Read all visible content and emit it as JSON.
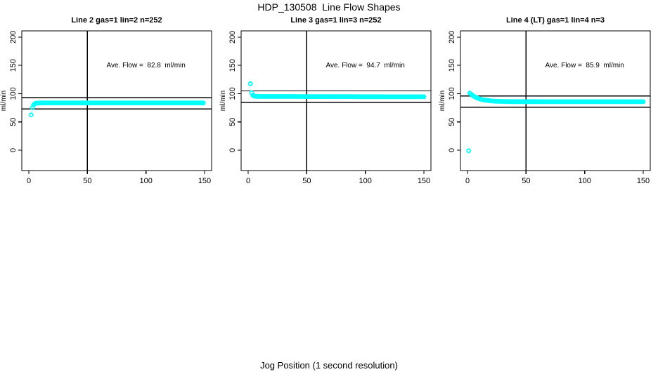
{
  "figure": {
    "title": "HDP_130508  Line Flow Shapes",
    "xlabel": "Jog Position (1 second resolution)",
    "background_color": "#ffffff",
    "axis_color": "#000000",
    "marker_color": "#00FFFF"
  },
  "chart_data": [
    {
      "type": "scatter",
      "title": "Line 2 gas=1 lin=2 n=252",
      "annotation": "Ave. Flow =  82.8  ml/min",
      "ave_flow_ml_min": 82.8,
      "n": 252,
      "ylabel": "ml/min",
      "x_ticks": [
        0,
        50,
        100,
        150
      ],
      "y_ticks": [
        0,
        50,
        100,
        150,
        200
      ],
      "xlim": [
        -6,
        156
      ],
      "ylim": [
        -36,
        211
      ],
      "vline_x": 50,
      "hlines": [
        92.8,
        72.8
      ],
      "annotation_xy": [
        100,
        150
      ],
      "series": {
        "x_start": 2,
        "x_step": 1,
        "y": [
          62.5,
          75,
          80.1,
          82.1,
          82.9,
          83.2,
          83.4,
          83.5,
          83.5,
          83.5,
          83.5,
          83.5,
          83.5,
          83.5,
          83.5,
          83.5,
          83.5,
          83.5,
          83.5,
          83.5,
          83.5,
          83.5,
          83.5,
          83.5,
          83.5,
          83.5,
          83.5,
          83.5,
          83.5,
          83.5,
          83.5,
          83.5,
          83.5,
          83.5,
          83.5,
          83.5,
          83.5,
          83.5,
          83.5,
          83.5,
          83.5,
          83.5,
          83.5,
          83.5,
          83.5,
          83.5,
          83.5,
          83.5,
          83.5,
          83.5,
          83.5,
          83.5,
          83.5,
          83.5,
          83.5,
          83.5,
          83.5,
          83.5,
          83.5,
          83.5,
          83.5,
          83.5,
          83.5,
          83.5,
          83.5,
          83.5,
          83.5,
          83.5,
          83.5,
          83.5,
          83.5,
          83.5,
          83.5,
          83.5,
          83.5,
          83.5,
          83.5,
          83.5,
          83.5,
          83.5,
          83.5,
          83.5,
          83.5,
          83.5,
          83.5,
          83.5,
          83.5,
          83.5,
          83.5,
          83.5,
          83.5,
          83.5,
          83.5,
          83.5,
          83.5,
          83.5,
          83.5,
          83.5,
          83.5,
          83.5,
          83.5,
          83.5,
          83.5,
          83.5,
          83.5,
          83.5,
          83.5,
          83.5,
          83.5,
          83.5,
          83.5,
          83.5,
          83.5,
          83.5,
          83.5,
          83.5,
          83.5,
          83.5,
          83.5,
          83.5,
          83.5,
          83.5,
          83.5,
          83.5,
          83.5,
          83.5,
          83.5,
          83.5,
          83.5,
          83.5,
          83.5,
          83.5,
          83.5,
          83.5,
          83.5,
          83.5,
          83.5,
          83.5,
          83.5,
          83.5,
          83.5,
          83.5,
          83.5,
          83.5,
          83.5,
          83.5,
          83.5,
          83.5
        ]
      }
    },
    {
      "type": "scatter",
      "title": "Line 3 gas=1 lin=3 n=252",
      "annotation": "Ave. Flow =  94.7  ml/min",
      "ave_flow_ml_min": 94.7,
      "n": 252,
      "ylabel": "ml/min",
      "x_ticks": [
        0,
        50,
        100,
        150
      ],
      "y_ticks": [
        0,
        50,
        100,
        150,
        200
      ],
      "xlim": [
        -6,
        156
      ],
      "ylim": [
        -36,
        211
      ],
      "vline_x": 50,
      "hlines": [
        104.7,
        84.7
      ],
      "annotation_xy": [
        100,
        150
      ],
      "series": {
        "x_start": 2,
        "x_step": 1,
        "y": [
          117.5,
          101.5,
          96.9,
          95.8,
          95.4,
          95.2,
          95.1,
          95,
          95,
          95,
          95,
          95,
          95,
          95,
          95,
          95,
          95,
          95,
          95,
          95,
          94.9,
          94.9,
          94.9,
          94.9,
          94.9,
          94.9,
          94.9,
          94.9,
          94.9,
          94.9,
          94.9,
          94.9,
          94.9,
          94.9,
          94.9,
          94.9,
          94.9,
          94.9,
          94.9,
          94.9,
          94.9,
          94.9,
          94.9,
          94.8,
          94.8,
          94.8,
          94.8,
          94.8,
          94.8,
          94.8,
          94.8,
          94.8,
          94.8,
          94.8,
          94.8,
          94.8,
          94.8,
          94.8,
          94.8,
          94.8,
          94.8,
          94.8,
          94.8,
          94.8,
          94.8,
          94.8,
          94.8,
          94.7,
          94.7,
          94.7,
          94.7,
          94.7,
          94.7,
          94.7,
          94.7,
          94.7,
          94.7,
          94.7,
          94.7,
          94.7,
          94.7,
          94.7,
          94.7,
          94.7,
          94.7,
          94.7,
          94.7,
          94.7,
          94.7,
          94.7,
          94.6,
          94.6,
          94.6,
          94.6,
          94.6,
          94.6,
          94.6,
          94.6,
          94.6,
          94.6,
          94.6,
          94.6,
          94.6,
          94.6,
          94.6,
          94.6,
          94.6,
          94.6,
          94.6,
          94.6,
          94.6,
          94.6,
          94.6,
          94.5,
          94.5,
          94.5,
          94.5,
          94.5,
          94.5,
          94.5,
          94.5,
          94.5,
          94.5,
          94.5,
          94.5,
          94.5,
          94.5,
          94.5,
          94.5,
          94.5,
          94.5,
          94.5,
          94.5,
          94.5,
          94.5,
          94.5,
          94.4,
          94.4,
          94.4,
          94.4,
          94.4,
          94.4,
          94.4,
          94.4,
          94.4,
          94.4,
          94.4,
          94.4,
          94.4
        ]
      }
    },
    {
      "type": "scatter",
      "title": "Line 4 (LT) gas=1 lin=4 n=3",
      "annotation": "Ave. Flow =  85.9  ml/min",
      "ave_flow_ml_min": 85.9,
      "n": 3,
      "ylabel": "ml/min",
      "x_ticks": [
        0,
        50,
        100,
        150
      ],
      "y_ticks": [
        0,
        50,
        100,
        150,
        200
      ],
      "xlim": [
        -6,
        156
      ],
      "ylim": [
        -36,
        211
      ],
      "vline_x": 50,
      "hlines": [
        95.9,
        75.9
      ],
      "annotation_xy": [
        100,
        150
      ],
      "series": {
        "x_start": 1,
        "x_step": 1,
        "y": [
          -1,
          101,
          99.1,
          97.4,
          96,
          94.7,
          93.6,
          92.6,
          91.8,
          91,
          90.4,
          89.8,
          89.3,
          88.9,
          88.5,
          88.2,
          87.9,
          87.6,
          87.4,
          87.2,
          87,
          86.9,
          86.8,
          86.6,
          86.5,
          86.4,
          86.4,
          86.3,
          86.2,
          86.2,
          86.1,
          86.1,
          86,
          86,
          86,
          85.9,
          85.9,
          85.9,
          85.9,
          85.9,
          85.9,
          85.9,
          85.9,
          85.9,
          85.9,
          85.9,
          85.9,
          85.9,
          85.9,
          85.9,
          85.9,
          85.9,
          85.9,
          85.9,
          85.9,
          85.9,
          85.9,
          85.9,
          85.9,
          85.9,
          85.8,
          85.8,
          85.8,
          85.8,
          85.8,
          85.8,
          85.8,
          85.8,
          85.8,
          85.8,
          85.8,
          85.8,
          85.8,
          85.8,
          85.8,
          85.8,
          85.8,
          85.8,
          85.8,
          85.8,
          85.8,
          85.8,
          85.8,
          85.8,
          85.8,
          85.8,
          85.8,
          85.8,
          85.8,
          85.8,
          85.8,
          85.8,
          85.8,
          85.8,
          85.8,
          85.8,
          85.8,
          85.8,
          85.8,
          85.8,
          85.8,
          85.8,
          85.8,
          85.8,
          85.8,
          85.8,
          85.8,
          85.8,
          85.8,
          85.8,
          85.8,
          85.8,
          85.8,
          85.8,
          85.8,
          85.8,
          85.8,
          85.8,
          85.8,
          85.8,
          85.8,
          85.8,
          85.8,
          85.8,
          85.8,
          85.8,
          85.8,
          85.8,
          85.8,
          85.8,
          85.8,
          85.8,
          85.8,
          85.8,
          85.8,
          85.8,
          85.8,
          85.8,
          85.8,
          85.8,
          85.8,
          85.8,
          85.8,
          85.8,
          85.8,
          85.8,
          85.8,
          85.8,
          85.8,
          85.8
        ]
      }
    }
  ]
}
